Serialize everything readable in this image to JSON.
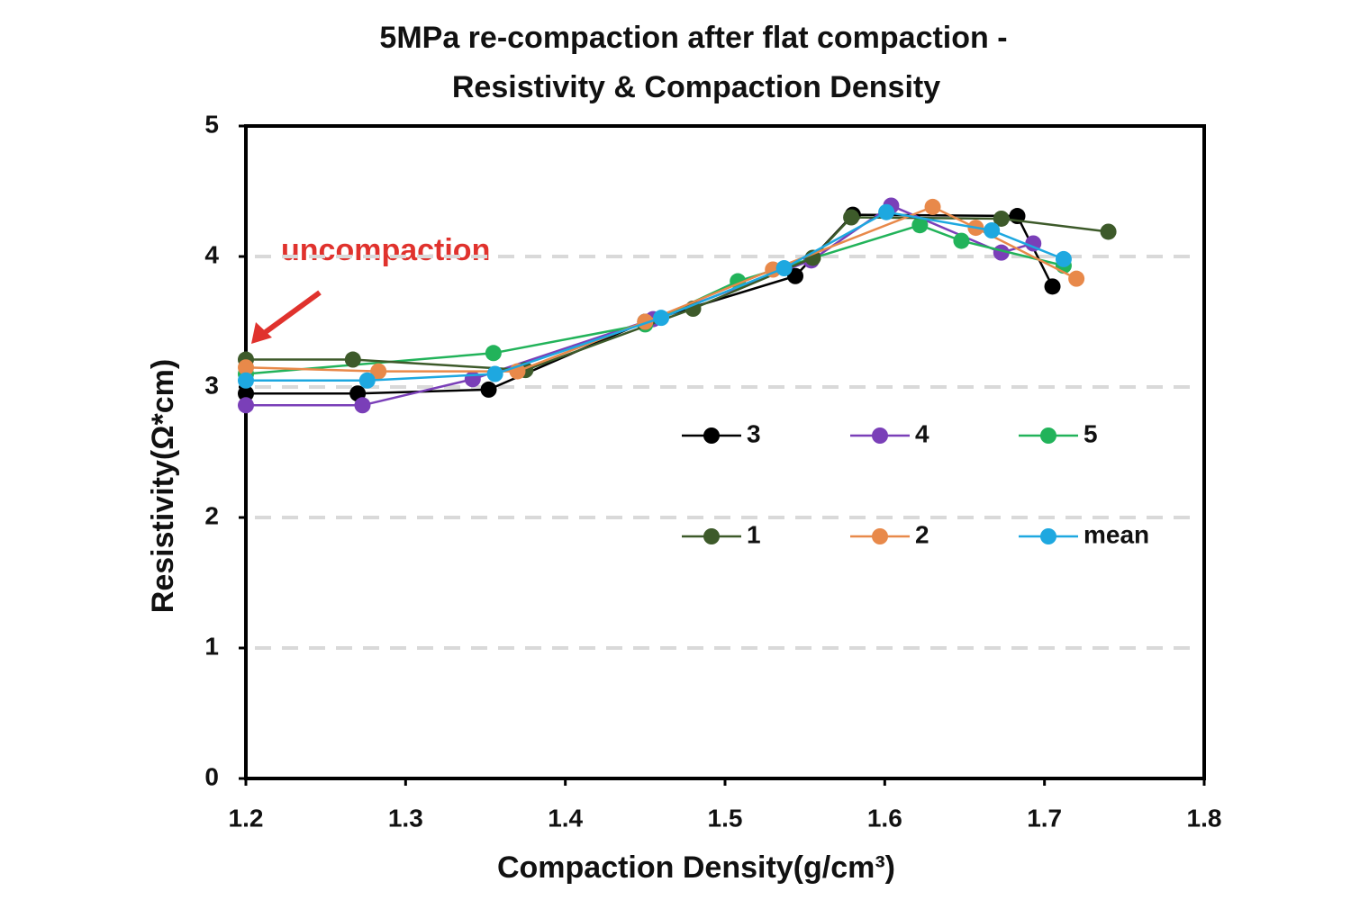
{
  "chart_data": {
    "type": "line",
    "title": [
      "5MPa re-compaction after flat compaction -",
      "Resistivity & Compaction Density"
    ],
    "xlabel": "Compaction Density(g/cm³)",
    "ylabel": "Resistivity(Ω*cm)",
    "annotation": "uncompaction",
    "xlim": [
      1.2,
      1.8
    ],
    "xticks": [
      1.2,
      1.3,
      1.4,
      1.5,
      1.6,
      1.7,
      1.8
    ],
    "ylim": [
      0,
      5
    ],
    "yticks": [
      0,
      1,
      2,
      3,
      4,
      5
    ],
    "grid": true,
    "series": [
      {
        "name": "3",
        "color": "#000000",
        "x": [
          1.2,
          1.27,
          1.352,
          1.45,
          1.544,
          1.58,
          1.683,
          1.705
        ],
        "values": [
          2.95,
          2.95,
          2.98,
          3.5,
          3.85,
          4.32,
          4.31,
          3.77
        ]
      },
      {
        "name": "4",
        "color": "#7a3fb8",
        "x": [
          1.2,
          1.273,
          1.342,
          1.455,
          1.554,
          1.604,
          1.673,
          1.693
        ],
        "values": [
          2.86,
          2.86,
          3.06,
          3.52,
          3.97,
          4.39,
          4.03,
          4.1
        ]
      },
      {
        "name": "5",
        "color": "#22b35a",
        "x": [
          1.2,
          1.355,
          1.45,
          1.508,
          1.622,
          1.648,
          1.712
        ],
        "values": [
          3.1,
          3.26,
          3.48,
          3.81,
          4.24,
          4.12,
          3.93
        ]
      },
      {
        "name": "1",
        "color": "#3d5a2a",
        "x": [
          1.2,
          1.267,
          1.375,
          1.48,
          1.555,
          1.579,
          1.673,
          1.74
        ],
        "values": [
          3.21,
          3.21,
          3.13,
          3.6,
          3.99,
          4.3,
          4.29,
          4.19
        ]
      },
      {
        "name": "2",
        "color": "#e8894a",
        "x": [
          1.2,
          1.283,
          1.37,
          1.45,
          1.53,
          1.63,
          1.657,
          1.72
        ],
        "values": [
          3.15,
          3.12,
          3.12,
          3.5,
          3.9,
          4.38,
          4.22,
          3.83
        ]
      },
      {
        "name": "mean",
        "color": "#1ea8e0",
        "x": [
          1.2,
          1.276,
          1.356,
          1.46,
          1.537,
          1.601,
          1.667,
          1.712
        ],
        "values": [
          3.05,
          3.05,
          3.1,
          3.53,
          3.91,
          4.34,
          4.2,
          3.98
        ]
      }
    ]
  }
}
